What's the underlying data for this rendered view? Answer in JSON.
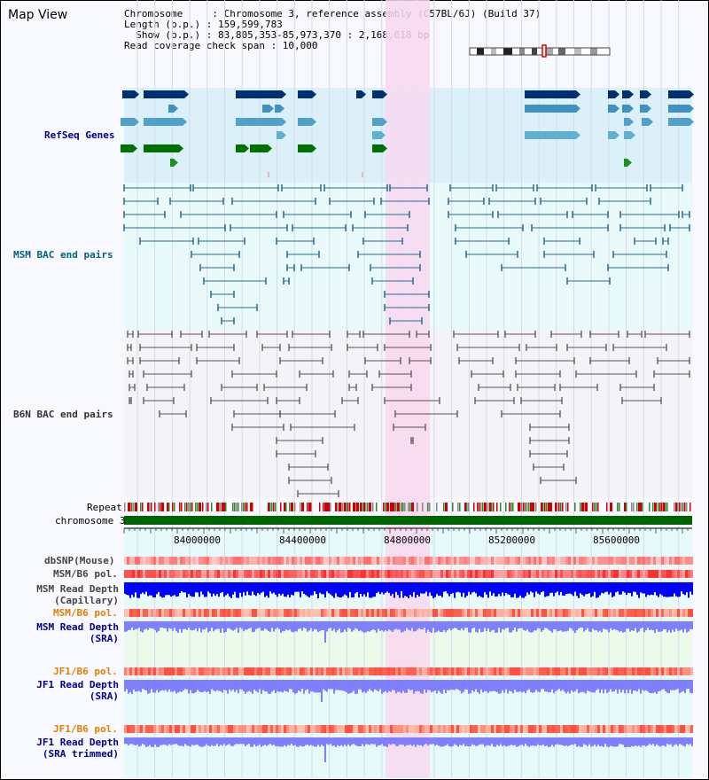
{
  "title": "Map View",
  "info": {
    "chromosome": "Chromosome     : Chromosome 3, reference assembly (C57BL/6J) (Build 37)",
    "length": "Length (b.p.) : 159,599,783",
    "show": "  Show (b.p.) : 83,805,353-85,973,370 : 2,168,018 bp",
    "coverage": "Read coverage check span : 10,000"
  },
  "tracks": {
    "refseq": "RefSeq Genes",
    "msm_bac": "MSM BAC end pairs",
    "b6n_bac": "B6N BAC end pairs",
    "repeat": "Repeat",
    "chromosome": "chromosome 3",
    "dbsnp": "dbSNP(Mouse)",
    "msm_b6_pol": "MSM/B6 pol.",
    "msm_read_depth_cap": "MSM Read Depth\n(Capillary)",
    "msm_b6_pol2": "MSM/B6 pol.",
    "msm_read_depth_sra": "MSM Read Depth\n(SRA)",
    "jf1_b6_pol": "JF1/B6 pol.",
    "jf1_read_depth": "JF1 Read Depth\n(SRA)",
    "jf1_b6_pol2": "JF1/B6 pol.",
    "jf1_read_depth_trim": "JF1 Read Depth\n(SRA trimmed)"
  },
  "ruler": {
    "ticks": [
      "84000000",
      "84400000",
      "84800000",
      "85200000",
      "85600000"
    ]
  },
  "colors": {
    "refseq_bg": "#dcf0fa",
    "bac_bg": "#e8fafa",
    "highlight": "#f8d8f0",
    "chromosome": "#006400",
    "depth_dark": "#0000ff",
    "depth_light": "#8080ff"
  }
}
